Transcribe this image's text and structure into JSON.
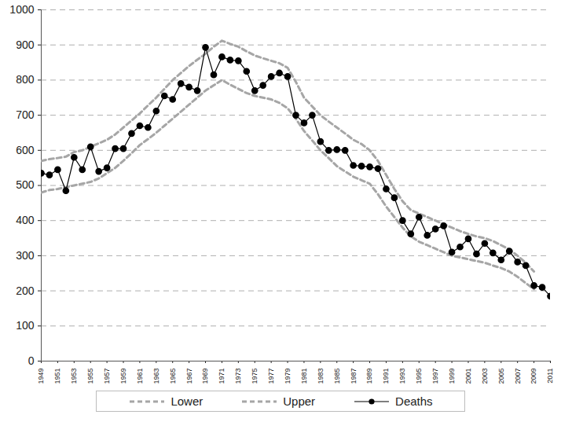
{
  "chart_data": {
    "type": "line",
    "x": [
      1949,
      1950,
      1951,
      1952,
      1953,
      1954,
      1955,
      1956,
      1957,
      1958,
      1959,
      1960,
      1961,
      1962,
      1963,
      1964,
      1965,
      1966,
      1967,
      1968,
      1969,
      1970,
      1971,
      1972,
      1973,
      1974,
      1975,
      1976,
      1977,
      1978,
      1979,
      1980,
      1981,
      1982,
      1983,
      1984,
      1985,
      1986,
      1987,
      1988,
      1989,
      1990,
      1991,
      1992,
      1993,
      1994,
      1995,
      1996,
      1997,
      1998,
      1999,
      2000,
      2001,
      2002,
      2003,
      2004,
      2005,
      2006,
      2007,
      2008,
      2009,
      2010,
      2011
    ],
    "series": [
      {
        "name": "Lower",
        "color": "#a6a6a6",
        "line_style": "dashed",
        "values": [
          480,
          487,
          490,
          495,
          500,
          505,
          510,
          520,
          535,
          550,
          570,
          592,
          615,
          632,
          650,
          670,
          690,
          710,
          730,
          750,
          770,
          785,
          800,
          787,
          775,
          763,
          755,
          750,
          745,
          735,
          720,
          690,
          655,
          628,
          600,
          578,
          555,
          540,
          525,
          515,
          505,
          475,
          440,
          410,
          380,
          355,
          340,
          330,
          320,
          310,
          300,
          295,
          290,
          285,
          280,
          272,
          265,
          255,
          240,
          222,
          205,
          null,
          null
        ]
      },
      {
        "name": "Upper",
        "color": "#a6a6a6",
        "line_style": "dashed",
        "values": [
          570,
          575,
          578,
          582,
          595,
          600,
          610,
          620,
          630,
          645,
          665,
          685,
          705,
          728,
          750,
          775,
          800,
          820,
          840,
          858,
          875,
          895,
          912,
          903,
          895,
          882,
          870,
          862,
          855,
          848,
          835,
          795,
          750,
          725,
          700,
          682,
          665,
          648,
          630,
          618,
          600,
          570,
          530,
          490,
          455,
          430,
          420,
          410,
          400,
          390,
          380,
          370,
          362,
          355,
          350,
          342,
          330,
          318,
          300,
          280,
          255,
          null,
          null
        ]
      },
      {
        "name": "Deaths",
        "color": "#000000",
        "line_style": "solid",
        "marker": "circle",
        "values": [
          535,
          530,
          545,
          485,
          580,
          545,
          610,
          540,
          550,
          605,
          605,
          648,
          670,
          665,
          712,
          755,
          745,
          790,
          780,
          770,
          893,
          815,
          866,
          857,
          855,
          825,
          770,
          785,
          810,
          820,
          810,
          700,
          678,
          700,
          625,
          600,
          602,
          600,
          557,
          555,
          553,
          548,
          490,
          465,
          400,
          362,
          410,
          358,
          376,
          385,
          310,
          325,
          348,
          305,
          335,
          308,
          288,
          313,
          282,
          272,
          215,
          210,
          185
        ]
      }
    ],
    "xlim": [
      1949,
      2011
    ],
    "xticks": [
      1949,
      1951,
      1953,
      1955,
      1957,
      1959,
      1961,
      1963,
      1965,
      1967,
      1969,
      1971,
      1973,
      1975,
      1977,
      1979,
      1981,
      1983,
      1985,
      1987,
      1989,
      1991,
      1993,
      1995,
      1997,
      1999,
      2001,
      2003,
      2005,
      2007,
      2009,
      2011
    ],
    "ylim": [
      0,
      1000
    ],
    "yticks": [
      0,
      100,
      200,
      300,
      400,
      500,
      600,
      700,
      800,
      900,
      1000
    ],
    "grid": true,
    "legend": "bottom"
  }
}
